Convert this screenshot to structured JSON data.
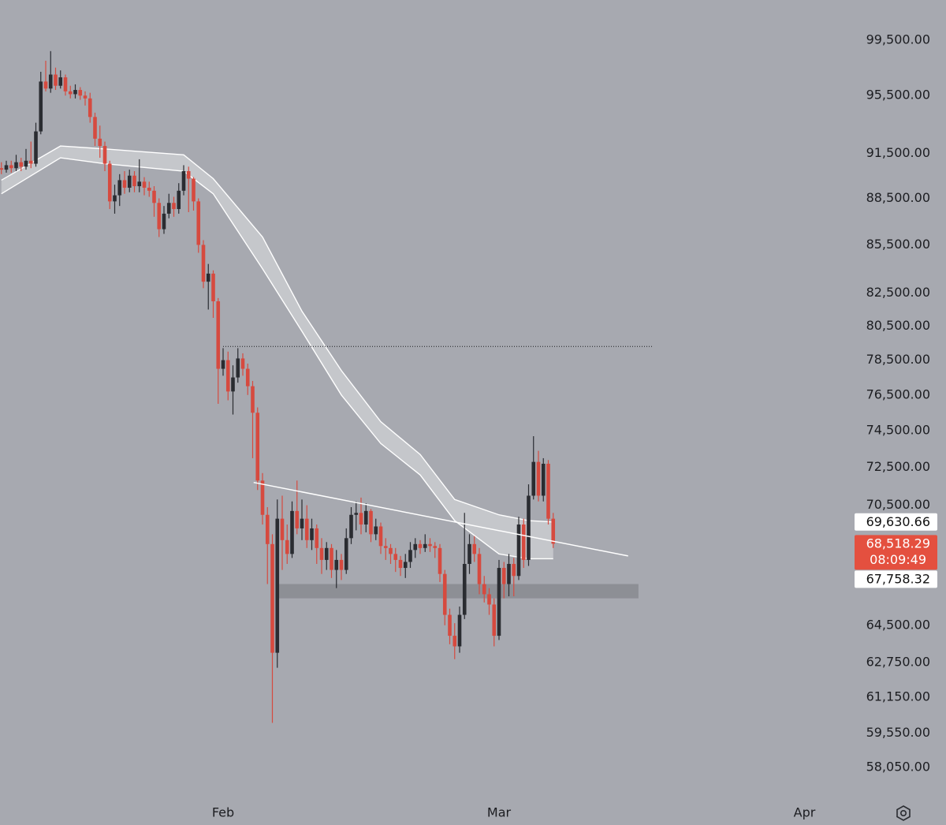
{
  "chart_data": {
    "type": "candlestick",
    "log_scale": true,
    "up_color": "#2a2c31",
    "down_color": "#d64a3f",
    "ylim": [
      56810,
      102510
    ],
    "yticks": [
      {
        "value": 99500,
        "label": "99,500.00"
      },
      {
        "value": 95500,
        "label": "95,500.00"
      },
      {
        "value": 91500,
        "label": "91,500.00"
      },
      {
        "value": 88500,
        "label": "88,500.00"
      },
      {
        "value": 85500,
        "label": "85,500.00"
      },
      {
        "value": 82500,
        "label": "82,500.00"
      },
      {
        "value": 80500,
        "label": "80,500.00"
      },
      {
        "value": 78500,
        "label": "78,500.00"
      },
      {
        "value": 76500,
        "label": "76,500.00"
      },
      {
        "value": 74500,
        "label": "74,500.00"
      },
      {
        "value": 72500,
        "label": "72,500.00"
      },
      {
        "value": 70500,
        "label": "70,500.00"
      },
      {
        "value": 64500,
        "label": "64,500.00"
      },
      {
        "value": 62750,
        "label": "62,750.00"
      },
      {
        "value": 61150,
        "label": "61,150.00"
      },
      {
        "value": 59550,
        "label": "59,550.00"
      },
      {
        "value": 58050,
        "label": "58,050.00"
      }
    ],
    "xlim": [
      -0.28,
      172.52
    ],
    "xticks": [
      {
        "value": 45,
        "label": "Feb"
      },
      {
        "value": 101,
        "label": "Mar"
      },
      {
        "value": 163,
        "label": "Apr"
      }
    ],
    "candles": [
      [
        90500,
        90900,
        90100,
        90400
      ],
      [
        90400,
        91000,
        90200,
        90700
      ],
      [
        90700,
        91000,
        90200,
        90500
      ],
      [
        90500,
        91400,
        90300,
        90900
      ],
      [
        90900,
        91200,
        90300,
        90600
      ],
      [
        90600,
        91800,
        90400,
        91000
      ],
      [
        91000,
        92300,
        90500,
        90800
      ],
      [
        90800,
        93600,
        90600,
        93000
      ],
      [
        93000,
        97200,
        92800,
        96500
      ],
      [
        96500,
        98000,
        95800,
        96000
      ],
      [
        96000,
        98700,
        95700,
        97000
      ],
      [
        97000,
        97500,
        95900,
        96200
      ],
      [
        96200,
        97300,
        96000,
        96800
      ],
      [
        96800,
        97000,
        95500,
        95800
      ],
      [
        95800,
        96200,
        95300,
        95600
      ],
      [
        95600,
        96300,
        95300,
        95900
      ],
      [
        95900,
        96100,
        95200,
        95500
      ],
      [
        95500,
        95800,
        94800,
        95300
      ],
      [
        95300,
        95700,
        93600,
        94000
      ],
      [
        94000,
        94300,
        92000,
        92500
      ],
      [
        92500,
        93400,
        91200,
        92000
      ],
      [
        92000,
        92300,
        90300,
        90800
      ],
      [
        90800,
        91000,
        87800,
        88300
      ],
      [
        88300,
        89400,
        87500,
        88700
      ],
      [
        88700,
        90100,
        88000,
        89700
      ],
      [
        89700,
        90300,
        88800,
        89200
      ],
      [
        89200,
        90400,
        88900,
        90000
      ],
      [
        90000,
        90300,
        88900,
        89300
      ],
      [
        89300,
        91100,
        88900,
        89600
      ],
      [
        89600,
        89900,
        88700,
        89200
      ],
      [
        89200,
        89600,
        88600,
        89000
      ],
      [
        89000,
        89300,
        87300,
        88200
      ],
      [
        88200,
        88500,
        86000,
        86500
      ],
      [
        86500,
        88000,
        86200,
        87500
      ],
      [
        87500,
        88800,
        87200,
        88200
      ],
      [
        88200,
        88600,
        87300,
        87800
      ],
      [
        87800,
        89500,
        87500,
        89000
      ],
      [
        89000,
        90700,
        88700,
        90300
      ],
      [
        90300,
        90600,
        87600,
        89800
      ],
      [
        89800,
        89900,
        87700,
        88300
      ],
      [
        88300,
        88500,
        85000,
        85500
      ],
      [
        85500,
        85800,
        82800,
        83200
      ],
      [
        83200,
        84300,
        81500,
        83700
      ],
      [
        83700,
        83900,
        81000,
        82000
      ],
      [
        82000,
        82200,
        76000,
        78000
      ],
      [
        78000,
        79200,
        77600,
        78500
      ],
      [
        78500,
        79000,
        76200,
        76700
      ],
      [
        76700,
        78200,
        75400,
        77500
      ],
      [
        77500,
        79200,
        77200,
        78600
      ],
      [
        78600,
        78900,
        77600,
        78000
      ],
      [
        78000,
        78300,
        76500,
        77000
      ],
      [
        77000,
        77300,
        73000,
        75500
      ],
      [
        75500,
        75800,
        71300,
        71800
      ],
      [
        71800,
        72200,
        69500,
        70000
      ],
      [
        70000,
        70400,
        66500,
        68500
      ],
      [
        68500,
        69000,
        60000,
        63200
      ],
      [
        63200,
        70800,
        62500,
        69800
      ],
      [
        69800,
        71000,
        67200,
        68700
      ],
      [
        68700,
        69500,
        67500,
        68000
      ],
      [
        68000,
        70700,
        67800,
        70200
      ],
      [
        70200,
        71800,
        69000,
        69300
      ],
      [
        69300,
        70800,
        68700,
        69800
      ],
      [
        69800,
        70500,
        68300,
        68700
      ],
      [
        68700,
        69800,
        68200,
        69300
      ],
      [
        69300,
        69500,
        67500,
        68300
      ],
      [
        68300,
        68800,
        67000,
        67700
      ],
      [
        67700,
        68600,
        67200,
        68300
      ],
      [
        68300,
        68500,
        66800,
        67200
      ],
      [
        67200,
        68200,
        66300,
        67700
      ],
      [
        67700,
        68000,
        66700,
        67200
      ],
      [
        67200,
        69300,
        67000,
        68800
      ],
      [
        68800,
        70400,
        68500,
        70000
      ],
      [
        70000,
        70700,
        69200,
        70100
      ],
      [
        70100,
        70900,
        69000,
        69500
      ],
      [
        69500,
        70600,
        69100,
        70200
      ],
      [
        70200,
        70300,
        68600,
        69000
      ],
      [
        69000,
        69800,
        68700,
        69400
      ],
      [
        69400,
        69600,
        68000,
        68400
      ],
      [
        68400,
        68800,
        67700,
        68300
      ],
      [
        68300,
        68500,
        67500,
        68000
      ],
      [
        68000,
        68300,
        67100,
        67700
      ],
      [
        67700,
        67900,
        66900,
        67300
      ],
      [
        67300,
        68000,
        66800,
        67600
      ],
      [
        67600,
        68600,
        67300,
        68200
      ],
      [
        68200,
        68800,
        67800,
        68500
      ],
      [
        68500,
        68700,
        68000,
        68300
      ],
      [
        68300,
        69000,
        68100,
        68500
      ],
      [
        68500,
        68800,
        68100,
        68400
      ],
      [
        68400,
        68600,
        67800,
        68300
      ],
      [
        68300,
        68500,
        66600,
        67000
      ],
      [
        67000,
        67200,
        64500,
        65000
      ],
      [
        65000,
        65300,
        63600,
        64000
      ],
      [
        64000,
        64600,
        62900,
        63500
      ],
      [
        63500,
        65400,
        63200,
        65000
      ],
      [
        65000,
        70100,
        64800,
        67500
      ],
      [
        67500,
        69000,
        67000,
        68500
      ],
      [
        68500,
        68900,
        67600,
        68000
      ],
      [
        68000,
        68300,
        66000,
        66500
      ],
      [
        66500,
        66900,
        65600,
        66000
      ],
      [
        66000,
        66300,
        65000,
        65500
      ],
      [
        65500,
        65800,
        63500,
        64000
      ],
      [
        64000,
        67700,
        63800,
        67300
      ],
      [
        67300,
        67600,
        65800,
        66500
      ],
      [
        66500,
        68000,
        65900,
        67500
      ],
      [
        67500,
        67800,
        65900,
        66900
      ],
      [
        66900,
        69900,
        66700,
        69500
      ],
      [
        69500,
        69800,
        67300,
        67700
      ],
      [
        67700,
        71600,
        67400,
        71000
      ],
      [
        71000,
        74200,
        70800,
        72800
      ],
      [
        72800,
        73400,
        70700,
        71000
      ],
      [
        71000,
        73000,
        70700,
        72700
      ],
      [
        72700,
        72900,
        69500,
        69800
      ],
      [
        69800,
        70100,
        68300,
        68518.29
      ]
    ],
    "series": [
      {
        "color": "#ffffff",
        "x": [
          0,
          12,
          21,
          37,
          43,
          53,
          61,
          69,
          77,
          85,
          92,
          101,
          107,
          112
        ],
        "values": [
          89700,
          92000,
          91800,
          91400,
          89800,
          86000,
          81400,
          77900,
          75000,
          73200,
          70800,
          70000,
          69700,
          69630.66
        ]
      },
      {
        "color": "#ffffff",
        "x": [
          0,
          12,
          21,
          37,
          43,
          53,
          61,
          69,
          77,
          85,
          92,
          101,
          107,
          112
        ],
        "values": [
          88800,
          91200,
          90800,
          90300,
          88800,
          84000,
          80200,
          76500,
          73800,
          72100,
          69700,
          68000,
          67760,
          67758.32
        ]
      }
    ],
    "trendline": {
      "x": [
        51.2,
        127.2
      ],
      "values": [
        71700,
        67900
      ]
    },
    "level": {
      "x": [
        45,
        132.2
      ],
      "value": 79300
    },
    "zone": {
      "x": [
        55.7,
        129.3
      ],
      "values": [
        65800,
        66500
      ]
    },
    "price_labels": [
      {
        "value": 69630.66,
        "label": "69,630.66",
        "style": "plain"
      },
      {
        "value": 68518.29,
        "label": "68,518.29",
        "style": "last",
        "countdown": "08:09:49"
      },
      {
        "value": 67758.32,
        "label": "67,758.32",
        "style": "plain"
      }
    ]
  }
}
